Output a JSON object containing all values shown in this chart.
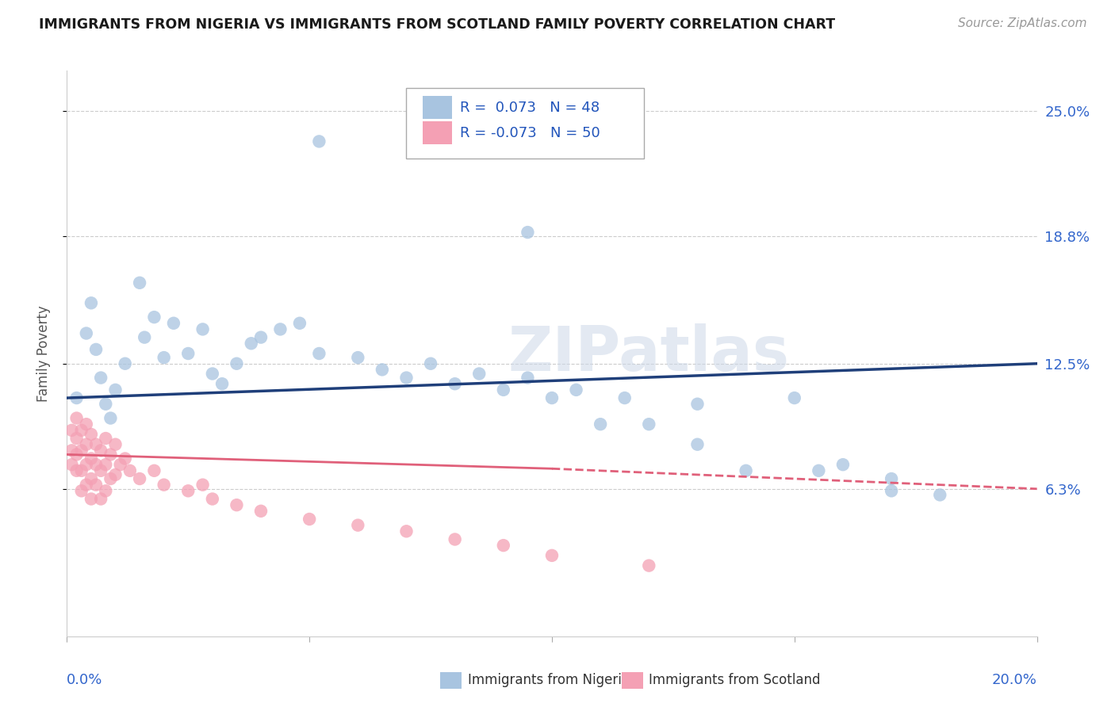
{
  "title": "IMMIGRANTS FROM NIGERIA VS IMMIGRANTS FROM SCOTLAND FAMILY POVERTY CORRELATION CHART",
  "source": "Source: ZipAtlas.com",
  "ylabel": "Family Poverty",
  "y_tick_values": [
    0.063,
    0.125,
    0.188,
    0.25
  ],
  "y_tick_labels": [
    "6.3%",
    "12.5%",
    "18.8%",
    "25.0%"
  ],
  "x_range": [
    0.0,
    0.2
  ],
  "y_range": [
    -0.01,
    0.27
  ],
  "nigeria_color": "#a8c4e0",
  "scotland_color": "#f4a0b4",
  "nigeria_line_color": "#1f3f7a",
  "scotland_line_color": "#e0607a",
  "watermark": "ZIPatlas",
  "nigeria_scatter_x": [
    0.002,
    0.004,
    0.005,
    0.006,
    0.007,
    0.008,
    0.009,
    0.01,
    0.012,
    0.015,
    0.016,
    0.018,
    0.02,
    0.022,
    0.025,
    0.028,
    0.03,
    0.032,
    0.035,
    0.038,
    0.04,
    0.044,
    0.048,
    0.052,
    0.06,
    0.065,
    0.07,
    0.075,
    0.08,
    0.085,
    0.09,
    0.095,
    0.1,
    0.105,
    0.11,
    0.115,
    0.12,
    0.13,
    0.14,
    0.15,
    0.16,
    0.17,
    0.052,
    0.095,
    0.13,
    0.155,
    0.17,
    0.18
  ],
  "nigeria_scatter_y": [
    0.108,
    0.14,
    0.155,
    0.132,
    0.118,
    0.105,
    0.098,
    0.112,
    0.125,
    0.165,
    0.138,
    0.148,
    0.128,
    0.145,
    0.13,
    0.142,
    0.12,
    0.115,
    0.125,
    0.135,
    0.138,
    0.142,
    0.145,
    0.13,
    0.128,
    0.122,
    0.118,
    0.125,
    0.115,
    0.12,
    0.112,
    0.118,
    0.108,
    0.112,
    0.095,
    0.108,
    0.095,
    0.105,
    0.072,
    0.108,
    0.075,
    0.062,
    0.235,
    0.19,
    0.085,
    0.072,
    0.068,
    0.06
  ],
  "scotland_scatter_x": [
    0.001,
    0.001,
    0.001,
    0.002,
    0.002,
    0.002,
    0.002,
    0.003,
    0.003,
    0.003,
    0.003,
    0.004,
    0.004,
    0.004,
    0.004,
    0.005,
    0.005,
    0.005,
    0.005,
    0.006,
    0.006,
    0.006,
    0.007,
    0.007,
    0.007,
    0.008,
    0.008,
    0.008,
    0.009,
    0.009,
    0.01,
    0.01,
    0.011,
    0.012,
    0.013,
    0.015,
    0.018,
    0.02,
    0.025,
    0.028,
    0.03,
    0.035,
    0.04,
    0.05,
    0.06,
    0.07,
    0.08,
    0.09,
    0.1,
    0.12
  ],
  "scotland_scatter_y": [
    0.092,
    0.082,
    0.075,
    0.098,
    0.088,
    0.08,
    0.072,
    0.092,
    0.082,
    0.072,
    0.062,
    0.095,
    0.085,
    0.075,
    0.065,
    0.09,
    0.078,
    0.068,
    0.058,
    0.085,
    0.075,
    0.065,
    0.082,
    0.072,
    0.058,
    0.088,
    0.075,
    0.062,
    0.08,
    0.068,
    0.085,
    0.07,
    0.075,
    0.078,
    0.072,
    0.068,
    0.072,
    0.065,
    0.062,
    0.065,
    0.058,
    0.055,
    0.052,
    0.048,
    0.045,
    0.042,
    0.038,
    0.035,
    0.03,
    0.025
  ],
  "legend_nig_r": "R =  0.073",
  "legend_nig_n": "N = 48",
  "legend_sco_r": "R = -0.073",
  "legend_sco_n": "N = 50"
}
